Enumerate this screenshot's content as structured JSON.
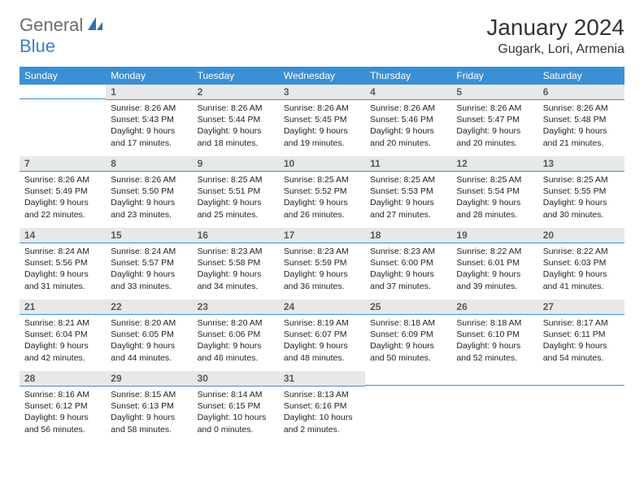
{
  "logo": {
    "text1": "General",
    "text2": "Blue"
  },
  "title": "January 2024",
  "location": "Gugark, Lori, Armenia",
  "colors": {
    "header_bg": "#3b8fd4",
    "header_text": "#ffffff",
    "daynum_bg": "#e8e8e8",
    "daynum_text": "#5a5a5a",
    "divider": "#3b8fd4",
    "body_text": "#222222",
    "logo_gray": "#6b6b6b",
    "logo_blue": "#3b7fc4"
  },
  "weekdays": [
    "Sunday",
    "Monday",
    "Tuesday",
    "Wednesday",
    "Thursday",
    "Friday",
    "Saturday"
  ],
  "weeks": [
    [
      null,
      {
        "n": "1",
        "sr": "8:26 AM",
        "ss": "5:43 PM",
        "dl": "9 hours and 17 minutes."
      },
      {
        "n": "2",
        "sr": "8:26 AM",
        "ss": "5:44 PM",
        "dl": "9 hours and 18 minutes."
      },
      {
        "n": "3",
        "sr": "8:26 AM",
        "ss": "5:45 PM",
        "dl": "9 hours and 19 minutes."
      },
      {
        "n": "4",
        "sr": "8:26 AM",
        "ss": "5:46 PM",
        "dl": "9 hours and 20 minutes."
      },
      {
        "n": "5",
        "sr": "8:26 AM",
        "ss": "5:47 PM",
        "dl": "9 hours and 20 minutes."
      },
      {
        "n": "6",
        "sr": "8:26 AM",
        "ss": "5:48 PM",
        "dl": "9 hours and 21 minutes."
      }
    ],
    [
      {
        "n": "7",
        "sr": "8:26 AM",
        "ss": "5:49 PM",
        "dl": "9 hours and 22 minutes."
      },
      {
        "n": "8",
        "sr": "8:26 AM",
        "ss": "5:50 PM",
        "dl": "9 hours and 23 minutes."
      },
      {
        "n": "9",
        "sr": "8:25 AM",
        "ss": "5:51 PM",
        "dl": "9 hours and 25 minutes."
      },
      {
        "n": "10",
        "sr": "8:25 AM",
        "ss": "5:52 PM",
        "dl": "9 hours and 26 minutes."
      },
      {
        "n": "11",
        "sr": "8:25 AM",
        "ss": "5:53 PM",
        "dl": "9 hours and 27 minutes."
      },
      {
        "n": "12",
        "sr": "8:25 AM",
        "ss": "5:54 PM",
        "dl": "9 hours and 28 minutes."
      },
      {
        "n": "13",
        "sr": "8:25 AM",
        "ss": "5:55 PM",
        "dl": "9 hours and 30 minutes."
      }
    ],
    [
      {
        "n": "14",
        "sr": "8:24 AM",
        "ss": "5:56 PM",
        "dl": "9 hours and 31 minutes."
      },
      {
        "n": "15",
        "sr": "8:24 AM",
        "ss": "5:57 PM",
        "dl": "9 hours and 33 minutes."
      },
      {
        "n": "16",
        "sr": "8:23 AM",
        "ss": "5:58 PM",
        "dl": "9 hours and 34 minutes."
      },
      {
        "n": "17",
        "sr": "8:23 AM",
        "ss": "5:59 PM",
        "dl": "9 hours and 36 minutes."
      },
      {
        "n": "18",
        "sr": "8:23 AM",
        "ss": "6:00 PM",
        "dl": "9 hours and 37 minutes."
      },
      {
        "n": "19",
        "sr": "8:22 AM",
        "ss": "6:01 PM",
        "dl": "9 hours and 39 minutes."
      },
      {
        "n": "20",
        "sr": "8:22 AM",
        "ss": "6:03 PM",
        "dl": "9 hours and 41 minutes."
      }
    ],
    [
      {
        "n": "21",
        "sr": "8:21 AM",
        "ss": "6:04 PM",
        "dl": "9 hours and 42 minutes."
      },
      {
        "n": "22",
        "sr": "8:20 AM",
        "ss": "6:05 PM",
        "dl": "9 hours and 44 minutes."
      },
      {
        "n": "23",
        "sr": "8:20 AM",
        "ss": "6:06 PM",
        "dl": "9 hours and 46 minutes."
      },
      {
        "n": "24",
        "sr": "8:19 AM",
        "ss": "6:07 PM",
        "dl": "9 hours and 48 minutes."
      },
      {
        "n": "25",
        "sr": "8:18 AM",
        "ss": "6:09 PM",
        "dl": "9 hours and 50 minutes."
      },
      {
        "n": "26",
        "sr": "8:18 AM",
        "ss": "6:10 PM",
        "dl": "9 hours and 52 minutes."
      },
      {
        "n": "27",
        "sr": "8:17 AM",
        "ss": "6:11 PM",
        "dl": "9 hours and 54 minutes."
      }
    ],
    [
      {
        "n": "28",
        "sr": "8:16 AM",
        "ss": "6:12 PM",
        "dl": "9 hours and 56 minutes."
      },
      {
        "n": "29",
        "sr": "8:15 AM",
        "ss": "6:13 PM",
        "dl": "9 hours and 58 minutes."
      },
      {
        "n": "30",
        "sr": "8:14 AM",
        "ss": "6:15 PM",
        "dl": "10 hours and 0 minutes."
      },
      {
        "n": "31",
        "sr": "8:13 AM",
        "ss": "6:16 PM",
        "dl": "10 hours and 2 minutes."
      },
      null,
      null,
      null
    ]
  ],
  "labels": {
    "sunrise": "Sunrise:",
    "sunset": "Sunset:",
    "daylight": "Daylight:"
  }
}
